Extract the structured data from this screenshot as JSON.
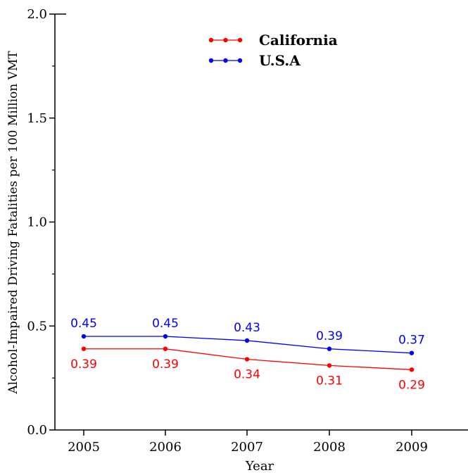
{
  "chart_data": {
    "type": "line",
    "title": "",
    "xlabel": "Year",
    "ylabel": "Alcohol-Impaired Driving Fatalities per 100 Million VMT",
    "categories": [
      "2005",
      "2006",
      "2007",
      "2008",
      "2009"
    ],
    "x_tick_labels": [
      "2005",
      "2006",
      "2007",
      "2008",
      "2009"
    ],
    "y_tick_labels": [
      "0.0",
      "0.5",
      "1.0",
      "1.5",
      "2.0"
    ],
    "ylim": [
      0,
      2.0
    ],
    "grid": false,
    "legend_position": "top-center",
    "series": [
      {
        "name": "California",
        "color": "#ff0000",
        "values": [
          0.39,
          0.39,
          0.34,
          0.31,
          0.29
        ],
        "labels": [
          "0.39",
          "0.39",
          "0.34",
          "0.31",
          "0.29"
        ],
        "label_position": "below"
      },
      {
        "name": "U.S.A",
        "color": "#0000ff",
        "values": [
          0.45,
          0.45,
          0.43,
          0.39,
          0.37
        ],
        "labels": [
          "0.45",
          "0.45",
          "0.43",
          "0.39",
          "0.37"
        ],
        "label_position": "above"
      }
    ]
  }
}
